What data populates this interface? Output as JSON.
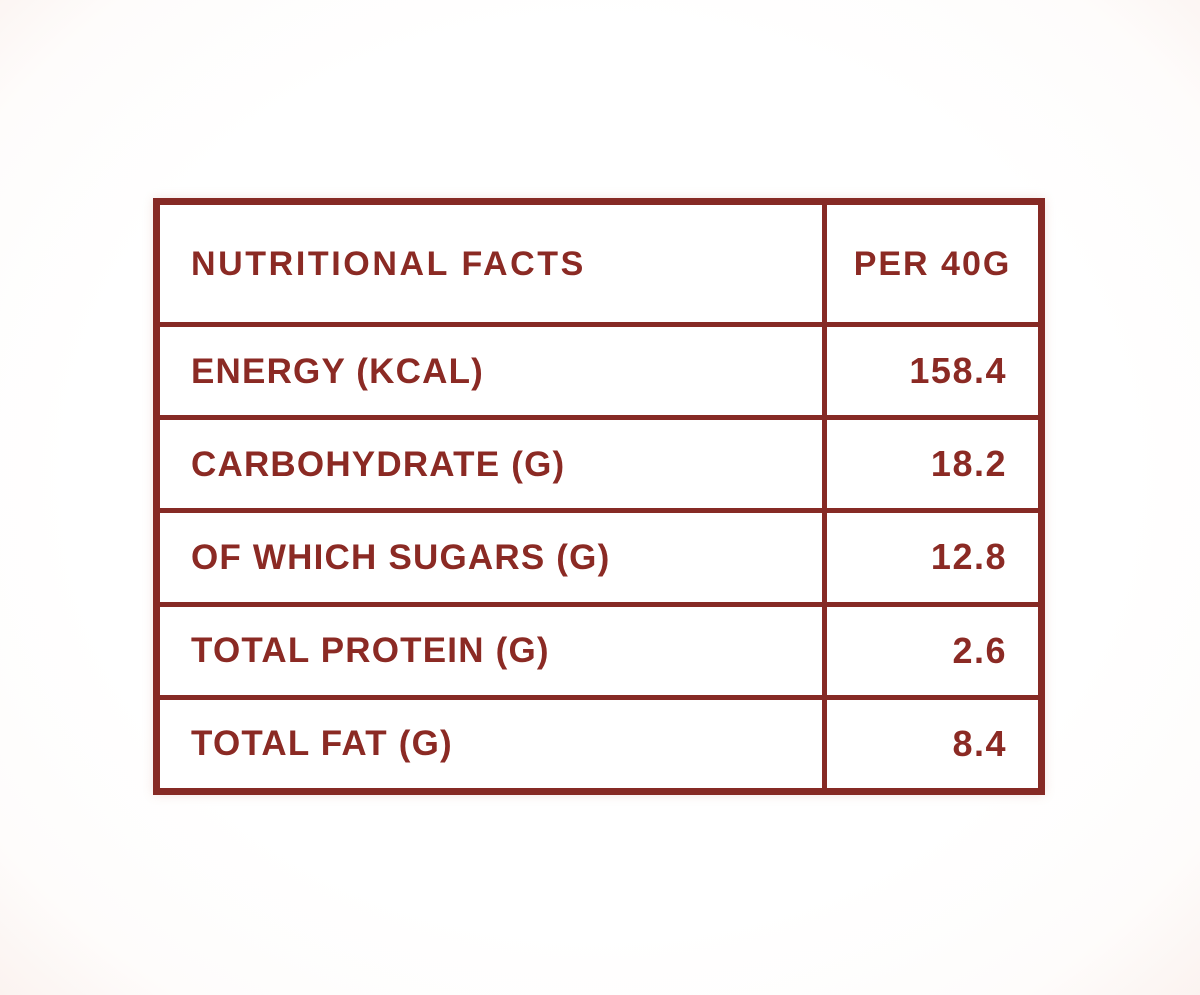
{
  "colors": {
    "accent_red": "#8b2a24",
    "border_red": "#862a25",
    "cell_background": "#ffffff",
    "page_background": "#ffffff"
  },
  "table": {
    "header": {
      "title": "NUTRITIONAL FACTS",
      "value_column": "PER 40G"
    },
    "rows": [
      {
        "label": "ENERGY (KCAL)",
        "value": "158.4"
      },
      {
        "label": "CARBOHYDRATE (G)",
        "value": "18.2"
      },
      {
        "label": "OF WHICH SUGARS (G)",
        "value": "12.8"
      },
      {
        "label": "TOTAL PROTEIN (G)",
        "value": "2.6"
      },
      {
        "label": "TOTAL FAT (G)",
        "value": "8.4"
      }
    ]
  },
  "chart_data": {
    "type": "table",
    "title": "NUTRITIONAL FACTS",
    "columns": [
      "NUTRITIONAL FACTS",
      "PER 40G"
    ],
    "rows": [
      [
        "ENERGY (KCAL)",
        158.4
      ],
      [
        "CARBOHYDRATE (G)",
        18.2
      ],
      [
        "OF WHICH SUGARS (G)",
        12.8
      ],
      [
        "TOTAL PROTEIN (G)",
        2.6
      ],
      [
        "TOTAL FAT (G)",
        8.4
      ]
    ]
  }
}
